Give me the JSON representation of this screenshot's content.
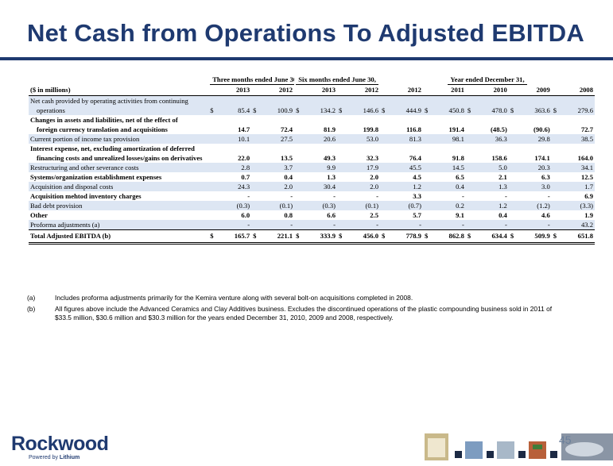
{
  "title": "Net Cash from Operations To Adjusted EBITDA",
  "table": {
    "groups": [
      "Three months ended June 30,",
      "Six months ended June 30,",
      "Year ended December 31,"
    ],
    "unit_label": "($ in millions)",
    "years": [
      "2013",
      "2012",
      "2013",
      "2012",
      "2012",
      "2011",
      "2010",
      "2009",
      "2008"
    ],
    "rows": [
      {
        "label": "Net cash provided by operating activities from continuing",
        "indent": false,
        "bold": false,
        "shade": true,
        "values": null
      },
      {
        "label": "operations",
        "indent": true,
        "bold": false,
        "shade": true,
        "dollar": true,
        "values": [
          "85.4",
          "100.9",
          "134.2",
          "146.6",
          "444.9",
          "450.8",
          "478.0",
          "363.6",
          "279.6"
        ]
      },
      {
        "label": "Changes in assets and liabilities, net of the effect of",
        "indent": false,
        "bold": true,
        "shade": false,
        "values": null
      },
      {
        "label": "foreign currency translation and acquisitions",
        "indent": true,
        "bold": true,
        "shade": false,
        "values": [
          "14.7",
          "72.4",
          "81.9",
          "199.8",
          "116.8",
          "191.4",
          "(48.5)",
          "(90.6)",
          "72.7"
        ]
      },
      {
        "label": "Current portion of income tax provision",
        "indent": false,
        "bold": false,
        "shade": true,
        "values": [
          "10.1",
          "27.5",
          "20.6",
          "53.0",
          "81.3",
          "98.1",
          "36.3",
          "29.8",
          "38.5"
        ]
      },
      {
        "label": "Interest expense, net, excluding amortization of deferred",
        "indent": false,
        "bold": true,
        "shade": false,
        "values": null
      },
      {
        "label": "financing costs and unrealized losses/gains on derivatives",
        "indent": true,
        "bold": true,
        "shade": false,
        "values": [
          "22.0",
          "13.5",
          "49.3",
          "32.3",
          "76.4",
          "91.8",
          "158.6",
          "174.1",
          "164.0"
        ]
      },
      {
        "label": "Restructuring and other severance costs",
        "indent": false,
        "bold": false,
        "shade": true,
        "values": [
          "2.8",
          "3.7",
          "9.9",
          "17.9",
          "45.5",
          "14.5",
          "5.0",
          "20.3",
          "34.1"
        ]
      },
      {
        "label": "Systems/organization establishment expenses",
        "indent": false,
        "bold": true,
        "shade": false,
        "values": [
          "0.7",
          "0.4",
          "1.3",
          "2.0",
          "4.5",
          "6.5",
          "2.1",
          "6.3",
          "12.5"
        ]
      },
      {
        "label": "Acquisition and disposal costs",
        "indent": false,
        "bold": false,
        "shade": true,
        "values": [
          "24.3",
          "2.0",
          "30.4",
          "2.0",
          "1.2",
          "0.4",
          "1.3",
          "3.0",
          "1.7"
        ]
      },
      {
        "label": "Acquisition mehtod inventory charges",
        "indent": false,
        "bold": true,
        "shade": false,
        "values": [
          "-",
          "-",
          "-",
          "-",
          "3.3",
          "-",
          "-",
          "-",
          "6.9"
        ]
      },
      {
        "label": "Bad debt provision",
        "indent": false,
        "bold": false,
        "shade": true,
        "values": [
          "(0.3)",
          "(0.1)",
          "(0.3)",
          "(0.1)",
          "(0.7)",
          "0.2",
          "1.2",
          "(1.2)",
          "(3.3)"
        ]
      },
      {
        "label": "Other",
        "indent": false,
        "bold": true,
        "shade": false,
        "values": [
          "6.0",
          "0.8",
          "6.6",
          "2.5",
          "5.7",
          "9.1",
          "0.4",
          "4.6",
          "1.9"
        ]
      },
      {
        "label": "Proforma adjustments (a)",
        "indent": false,
        "bold": false,
        "shade": true,
        "values": [
          "-",
          "-",
          "-",
          "-",
          "-",
          "-",
          "-",
          "-",
          "43.2"
        ]
      }
    ],
    "total": {
      "label": "Total Adjusted EBITDA (b)",
      "values": [
        "165.7",
        "221.1",
        "333.9",
        "456.0",
        "778.9",
        "862.8",
        "634.4",
        "509.9",
        "651.8"
      ]
    },
    "currency_symbol": "$"
  },
  "footnotes": [
    {
      "key": "(a)",
      "text": "Includes proforma adjustments primarily for the Kemira venture along with several bolt-on acquisitions completed in 2008."
    },
    {
      "key": "(b)",
      "text": "All figures above include the  Advanced Ceramics and Clay Additives business. Excludes the discontinued operations of the plastic compounding business sold in 2011 of $33.5 million, $30.6 million and $30.3 million for the years ended December 31, 2010, 2009 and 2008, respectively."
    }
  ],
  "logo": {
    "brand": "Rockwood",
    "tagline_prefix": "Powered by",
    "tagline_brand": "Lithium"
  },
  "page_number": "45",
  "colors": {
    "brand_navy": "#1f3a70",
    "row_shade": "#dde6f3"
  }
}
